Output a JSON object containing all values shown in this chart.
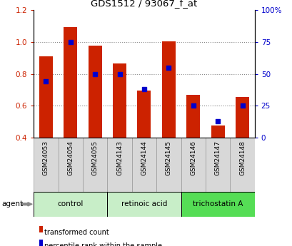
{
  "title": "GDS1512 / 93067_f_at",
  "samples": [
    "GSM24053",
    "GSM24054",
    "GSM24055",
    "GSM24143",
    "GSM24144",
    "GSM24145",
    "GSM24146",
    "GSM24147",
    "GSM24148"
  ],
  "red_values": [
    0.91,
    1.09,
    0.975,
    0.865,
    0.695,
    1.005,
    0.67,
    0.475,
    0.655
  ],
  "blue_values": [
    44,
    75,
    50,
    50,
    38,
    55,
    25,
    13,
    25
  ],
  "groups": [
    {
      "label": "control",
      "start": 0,
      "end": 3,
      "color": "#c8eec8"
    },
    {
      "label": "retinoic acid",
      "start": 3,
      "end": 6,
      "color": "#c8eec8"
    },
    {
      "label": "trichostatin A",
      "start": 6,
      "end": 9,
      "color": "#55dd55"
    }
  ],
  "ylim_left": [
    0.4,
    1.2
  ],
  "ylim_right": [
    0,
    100
  ],
  "yticks_left": [
    0.4,
    0.6,
    0.8,
    1.0,
    1.2
  ],
  "yticks_right": [
    0,
    25,
    50,
    75,
    100
  ],
  "ytick_labels_right": [
    "0",
    "25",
    "50",
    "75",
    "100%"
  ],
  "bar_color": "#cc2200",
  "dot_color": "#0000cc",
  "bar_width": 0.55,
  "background_color": "#ffffff",
  "agent_label": "agent",
  "legend_red": "transformed count",
  "legend_blue": "percentile rank within the sample",
  "tick_bg_color": "#d8d8d8",
  "tick_border_color": "#999999"
}
